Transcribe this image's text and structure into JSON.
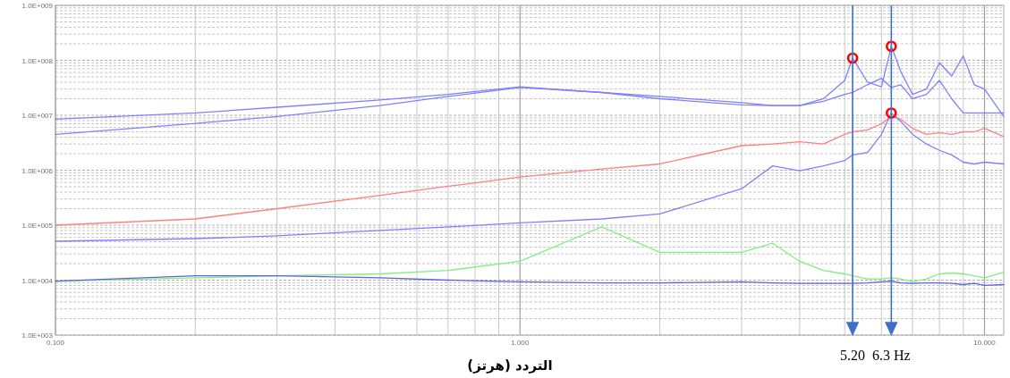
{
  "chart_data": {
    "type": "line",
    "xlabel": "التردد (هرتز)",
    "log": "xy",
    "grid": true,
    "xlim": [
      0.1,
      11
    ],
    "ylim": [
      1000,
      1000000000
    ],
    "xticks": [
      {
        "value": 0.1,
        "label": "0.100"
      },
      {
        "value": 1,
        "label": "1.000"
      },
      {
        "value": 10,
        "label": "10.000"
      }
    ],
    "yticks": [
      {
        "value": 1000,
        "label": "1.0E+003"
      },
      {
        "value": 10000,
        "label": "1.0E+004"
      },
      {
        "value": 100000,
        "label": "1.0E+005"
      },
      {
        "value": 1000000,
        "label": "1.0E+006"
      },
      {
        "value": 10000000,
        "label": "1.0E+007"
      },
      {
        "value": 100000000,
        "label": "1.0E+008"
      },
      {
        "value": 1000000000,
        "label": "1.0E+009"
      }
    ],
    "x": [
      0.1,
      0.2,
      0.3,
      0.5,
      0.7,
      1,
      1.5,
      2,
      3,
      3.5,
      4,
      4.5,
      5,
      5.2,
      5.6,
      6,
      6.3,
      6.6,
      7,
      7.5,
      8,
      8.5,
      9,
      9.5,
      10,
      11
    ],
    "series": [
      {
        "color": "#8080ff",
        "values": [
          4500000.0,
          7100000.0,
          9500000.0,
          15000000.0,
          22000000.0,
          32000000.0,
          26000000.0,
          20000000.0,
          15500000.0,
          15000000.0,
          15000000.0,
          20000000.0,
          43000000.0,
          110000000.0,
          40000000.0,
          33000000.0,
          180000000.0,
          63000000.0,
          24000000.0,
          30000000.0,
          90000000.0,
          52000000.0,
          120000000.0,
          36000000.0,
          30000000.0,
          9500000.0
        ]
      },
      {
        "color": "#8080ff",
        "values": [
          8500000.0,
          11000000.0,
          14000000.0,
          19000000.0,
          24000000.0,
          33000000.0,
          26000000.0,
          22000000.0,
          17000000.0,
          15000000.0,
          15000000.0,
          18000000.0,
          24000000.0,
          26000000.0,
          36000000.0,
          47000000.0,
          32000000.0,
          36000000.0,
          20000000.0,
          24000000.0,
          43000000.0,
          20000000.0,
          11000000.0,
          11000000.0,
          11000000.0,
          11000000.0
        ]
      },
      {
        "color": "#ff8080",
        "values": [
          100000.0,
          130000.0,
          200000.0,
          350000.0,
          510000.0,
          750000.0,
          1050000.0,
          1300000.0,
          2800000.0,
          3000000.0,
          3300000.0,
          3000000.0,
          4500000.0,
          5000000.0,
          5400000.0,
          7000000.0,
          9500000.0,
          8500000.0,
          5800000.0,
          4500000.0,
          4800000.0,
          4500000.0,
          5000000.0,
          5000000.0,
          5800000.0,
          4100000.0
        ]
      },
      {
        "color": "#8080ff",
        "values": [
          51000.0,
          57000.0,
          64000.0,
          80000.0,
          93000.0,
          110000.0,
          130000.0,
          160000.0,
          460000.0,
          1200000.0,
          980000.0,
          1200000.0,
          1500000.0,
          1900000.0,
          2100000.0,
          4500000.0,
          11000000.0,
          7800000.0,
          4500000.0,
          3000000.0,
          2300000.0,
          1900000.0,
          1400000.0,
          1300000.0,
          1400000.0,
          1300000.0
        ]
      },
      {
        "color": "#80f080",
        "values": [
          9600.0,
          11000.0,
          12000.0,
          13000.0,
          15000.0,
          22000.0,
          93000.0,
          32000.0,
          32000.0,
          47000.0,
          22000.0,
          15000.0,
          13000.0,
          12000.0,
          10500.0,
          10500.0,
          11000.0,
          10500.0,
          9300.0,
          10500.0,
          13000.0,
          13500.0,
          13000.0,
          12000.0,
          11000.0,
          14000.0
        ]
      },
      {
        "color": "#6060e0",
        "values": [
          9600.0,
          12000.0,
          12000.0,
          11000.0,
          10000.0,
          9300.0,
          8900.0,
          8900.0,
          9300.0,
          8900.0,
          8700.0,
          8700.0,
          8700.0,
          8700.0,
          8900.0,
          9300.0,
          9600.0,
          8900.0,
          8700.0,
          8900.0,
          8900.0,
          8700.0,
          8300.0,
          8700.0,
          8000.0,
          8300.0
        ]
      },
      {
        "type": "scatter",
        "marker": "circle",
        "color": "#ff0000",
        "values": [
          null,
          null,
          null,
          null,
          null,
          null,
          null,
          null,
          null,
          null,
          null,
          null,
          null,
          110000000.0,
          null,
          null,
          180000000.0,
          null,
          null,
          null,
          null,
          null,
          null,
          null,
          null,
          null
        ]
      },
      {
        "type": "scatter",
        "marker": "circle",
        "color": "#ff0000",
        "values": [
          null,
          null,
          null,
          null,
          null,
          null,
          null,
          null,
          null,
          null,
          null,
          null,
          null,
          null,
          null,
          null,
          11000000.0,
          null,
          null,
          null,
          null,
          null,
          null,
          null,
          null,
          null
        ]
      }
    ],
    "ref_lines": [
      {
        "axis": "x",
        "value": 5.2,
        "label": "5.20",
        "color": "#3f6fc6"
      },
      {
        "axis": "x",
        "value": 6.3,
        "label": "6.3 Hz",
        "color": "#3f6fc6"
      }
    ]
  }
}
